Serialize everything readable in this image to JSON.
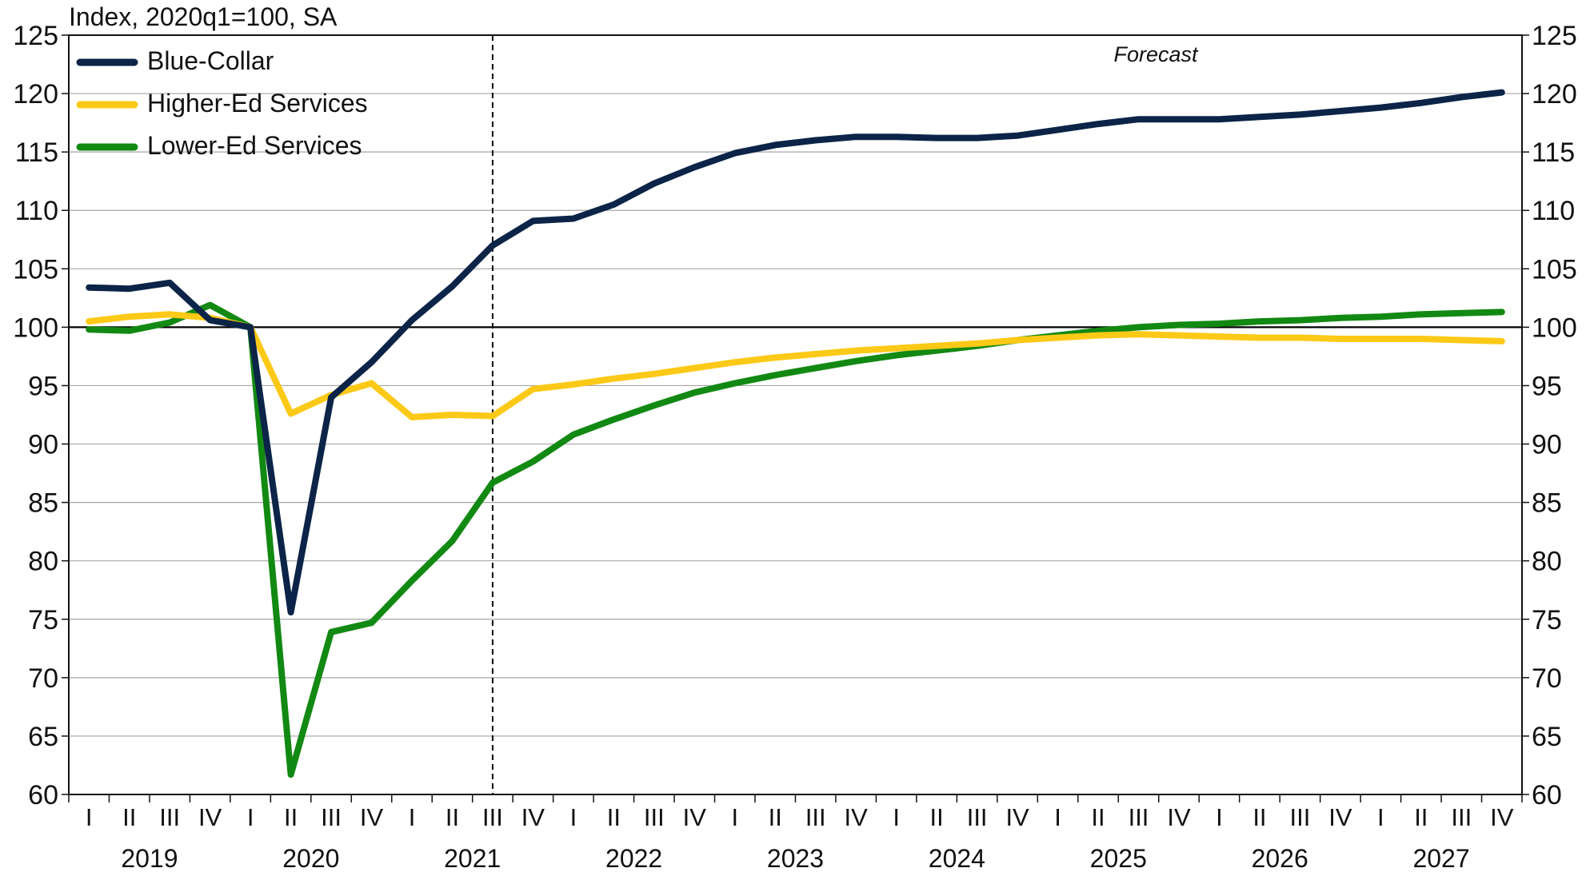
{
  "chart_data": {
    "type": "line",
    "unit_label": "Index, 2020q1=100, SA",
    "annotation": "Forecast",
    "forecast_start_index": 10,
    "ylim": [
      60,
      125
    ],
    "yticks": [
      60,
      65,
      70,
      75,
      80,
      85,
      90,
      95,
      100,
      105,
      110,
      115,
      120,
      125
    ],
    "y_axis_both_sides": true,
    "grid": true,
    "reference_line": 100,
    "legend_position": "top-left",
    "quarters": [
      "I",
      "II",
      "III",
      "IV",
      "I",
      "II",
      "III",
      "IV",
      "I",
      "II",
      "III",
      "IV",
      "I",
      "II",
      "III",
      "IV",
      "I",
      "II",
      "III",
      "IV",
      "I",
      "II",
      "III",
      "IV",
      "I",
      "II",
      "III",
      "IV",
      "I",
      "II",
      "III",
      "IV",
      "I",
      "II",
      "III",
      "IV"
    ],
    "years": [
      "2019",
      "2020",
      "2021",
      "2022",
      "2023",
      "2024",
      "2025",
      "2026",
      "2027"
    ],
    "series": [
      {
        "name": "Blue-Collar",
        "color": "#0b2447",
        "values": [
          103.4,
          103.3,
          103.8,
          100.6,
          100.0,
          75.6,
          94.0,
          97.0,
          100.6,
          103.5,
          107.0,
          109.1,
          109.3,
          110.5,
          112.3,
          113.7,
          114.9,
          115.6,
          116.0,
          116.3,
          116.3,
          116.2,
          116.2,
          116.4,
          116.9,
          117.4,
          117.8,
          117.8,
          117.8,
          118.0,
          118.2,
          118.5,
          118.8,
          119.2,
          119.7,
          120.1
        ]
      },
      {
        "name": "Higher-Ed Services",
        "color": "#fcc917",
        "values": [
          100.5,
          100.9,
          101.1,
          100.8,
          100.0,
          92.6,
          94.2,
          95.2,
          92.3,
          92.5,
          92.4,
          94.7,
          95.1,
          95.6,
          96.0,
          96.5,
          97.0,
          97.4,
          97.7,
          98.0,
          98.2,
          98.4,
          98.6,
          98.9,
          99.1,
          99.3,
          99.4,
          99.3,
          99.2,
          99.1,
          99.1,
          99.0,
          99.0,
          99.0,
          98.9,
          98.8
        ]
      },
      {
        "name": "Lower-Ed Services",
        "color": "#128912",
        "values": [
          99.8,
          99.7,
          100.4,
          101.9,
          100.0,
          61.7,
          73.9,
          74.7,
          78.3,
          81.7,
          86.7,
          88.5,
          90.8,
          92.1,
          93.3,
          94.4,
          95.2,
          95.9,
          96.5,
          97.1,
          97.6,
          98.0,
          98.4,
          98.9,
          99.3,
          99.7,
          100.0,
          100.2,
          100.3,
          100.5,
          100.6,
          100.8,
          100.9,
          101.1,
          101.2,
          101.3
        ]
      }
    ]
  }
}
